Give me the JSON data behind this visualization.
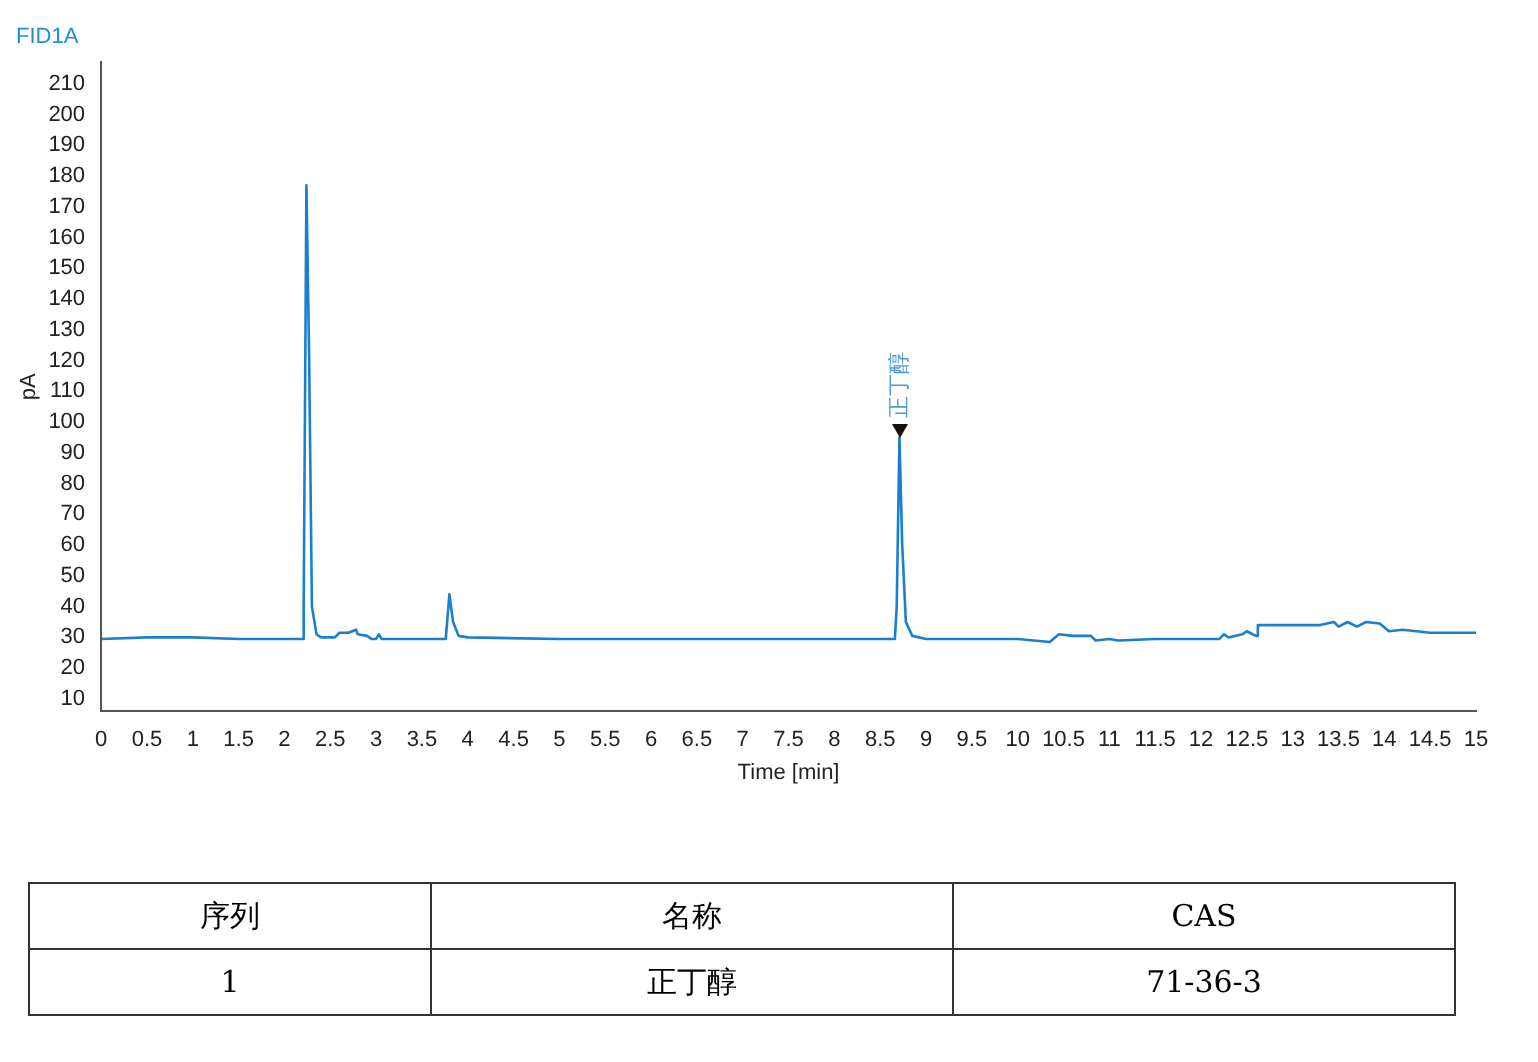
{
  "chart_data": [
    {
      "type": "line",
      "title": "FID1A",
      "xlabel": "Time [min]",
      "ylabel": "pA",
      "x": [
        0,
        0.5,
        1,
        1.5,
        2,
        2.2,
        2.21,
        2.24,
        2.27,
        2.3,
        2.35,
        2.4,
        2.55,
        2.6,
        2.7,
        2.78,
        2.8,
        2.9,
        2.95,
        3.0,
        3.03,
        3.06,
        3.5,
        3.76,
        3.8,
        3.84,
        3.9,
        4,
        5,
        6,
        7,
        8,
        8.66,
        8.68,
        8.71,
        8.74,
        8.78,
        8.85,
        9,
        10,
        10.35,
        10.45,
        10.6,
        10.8,
        10.85,
        11,
        11.1,
        11.5,
        12,
        12.2,
        12.25,
        12.3,
        12.45,
        12.5,
        12.6,
        12.62,
        13,
        13.3,
        13.45,
        13.5,
        13.6,
        13.7,
        13.8,
        13.95,
        14.05,
        14.2,
        14.5,
        15
      ],
      "series": [
        {
          "color": "#1a7fcf",
          "values": [
            29.5,
            30,
            30,
            29.5,
            29.5,
            29.5,
            40,
            177,
            120,
            40,
            31,
            30,
            30,
            31.5,
            31.5,
            32.5,
            31,
            30.5,
            29.5,
            29.5,
            31,
            29.5,
            29.5,
            29.5,
            44,
            35,
            30.5,
            30,
            29.5,
            29.5,
            29.5,
            29.5,
            29.5,
            40,
            95,
            60,
            35,
            30.5,
            29.5,
            29.5,
            28.5,
            31,
            30.5,
            30.5,
            29,
            29.5,
            29,
            29.5,
            29.5,
            29.5,
            31,
            30,
            31,
            32,
            30.5,
            34,
            34,
            34,
            35,
            33.5,
            35,
            33.5,
            35,
            34.5,
            32,
            32.5,
            31.5,
            31.5
          ]
        }
      ],
      "xlim": [
        0,
        15
      ],
      "ylim": [
        6,
        217
      ],
      "xticks": [
        0,
        0.5,
        1,
        1.5,
        2,
        2.5,
        3,
        3.5,
        4,
        4.5,
        5,
        5.5,
        6,
        6.5,
        7,
        7.5,
        8,
        8.5,
        9,
        9.5,
        10,
        10.5,
        11,
        11.5,
        12,
        12.5,
        13,
        13.5,
        14,
        14.5,
        15
      ],
      "yticks": [
        10,
        20,
        30,
        40,
        50,
        60,
        70,
        80,
        90,
        100,
        110,
        120,
        130,
        140,
        150,
        160,
        170,
        180,
        190,
        200,
        210
      ],
      "annotations": [
        {
          "text": "正丁醇",
          "x": 8.72,
          "y": 95
        }
      ],
      "grid": false,
      "legend": false,
      "marker": "none",
      "line_style": "solid"
    },
    {
      "type": "other",
      "annotations": [
        "序列",
        "名称",
        "CAS",
        "1",
        "正丁醇",
        "71-36-3"
      ]
    }
  ]
}
